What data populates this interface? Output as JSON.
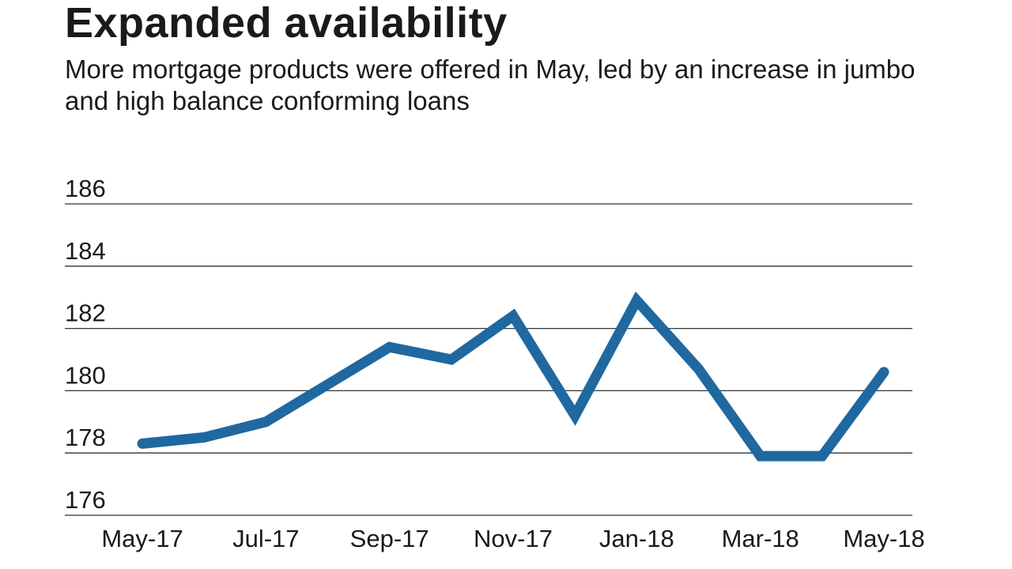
{
  "chart_data": {
    "type": "line",
    "title": "Expanded availability",
    "subtitle": "More mortgage products were offered in May, led by an increase in jumbo and high balance conforming loans",
    "xlabel": "",
    "ylabel": "",
    "x": [
      "May-17",
      "Jun-17",
      "Jul-17",
      "Aug-17",
      "Sep-17",
      "Oct-17",
      "Nov-17",
      "Dec-17",
      "Jan-18",
      "Feb-18",
      "Mar-18",
      "Apr-18",
      "May-18"
    ],
    "x_tick_labels": [
      "May-17",
      "Jul-17",
      "Sep-17",
      "Nov-17",
      "Jan-18",
      "Mar-18",
      "May-18"
    ],
    "series": [
      {
        "values": [
          178.3,
          178.5,
          179.0,
          180.2,
          181.4,
          181.0,
          182.4,
          179.2,
          182.9,
          180.7,
          177.9,
          177.9,
          180.6
        ]
      }
    ],
    "yticks": [
      176,
      178,
      180,
      182,
      184,
      186
    ],
    "ylim": [
      176,
      186
    ],
    "grid": true,
    "line_color": "#1f68a0"
  }
}
